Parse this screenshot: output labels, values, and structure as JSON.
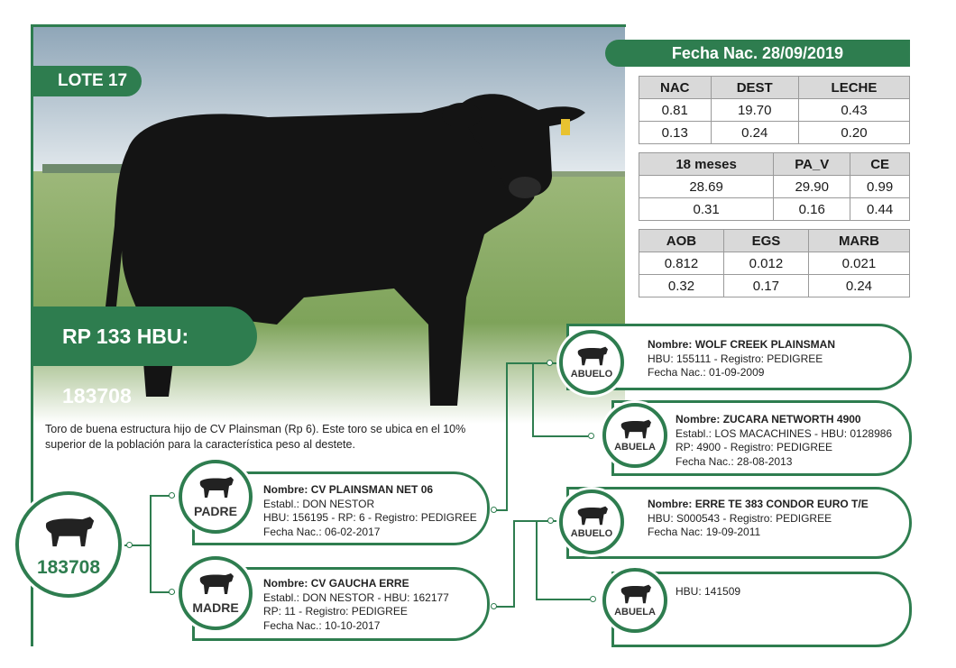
{
  "lote": "LOTE 17",
  "rp_hbu": "RP 133 HBU: 183708",
  "fecha_nac": "Fecha Nac. 28/09/2019",
  "tables": [
    {
      "headers": [
        "NAC",
        "DEST",
        "LECHE"
      ],
      "rows": [
        [
          "0.81",
          "19.70",
          "0.43"
        ],
        [
          "0.13",
          "0.24",
          "0.20"
        ]
      ]
    },
    {
      "headers": [
        "18 meses",
        "PA_V",
        "CE"
      ],
      "rows": [
        [
          "28.69",
          "29.90",
          "0.99"
        ],
        [
          "0.31",
          "0.16",
          "0.44"
        ]
      ]
    },
    {
      "headers": [
        "AOB",
        "EGS",
        "MARB"
      ],
      "rows": [
        [
          "0.812",
          "0.012",
          "0.021"
        ],
        [
          "0.32",
          "0.17",
          "0.24"
        ]
      ]
    }
  ],
  "description": "Toro de buena estructura hijo de CV Plainsman (Rp 6). Este toro se ubica en el 10% superior de la población para la característica peso al destete.",
  "main_id": "183708",
  "padre": {
    "role": "PADRE",
    "nombre_label": "Nombre:",
    "nombre": "CV PLAINSMAN NET 06",
    "line1": "Establ.: DON NESTOR",
    "line2": "HBU: 156195 - RP: 6 - Registro: PEDIGREE",
    "line3": "Fecha Nac.: 06-02-2017"
  },
  "madre": {
    "role": "MADRE",
    "nombre_label": "Nombre:",
    "nombre": "CV GAUCHA ERRE",
    "line1": "Establ.: DON NESTOR - HBU: 162177",
    "line2": "RP: 11 - Registro: PEDIGREE",
    "line3": "Fecha Nac.: 10-10-2017"
  },
  "abuelo_p": {
    "role": "ABUELO",
    "nombre_label": "Nombre:",
    "nombre": "WOLF CREEK PLAINSMAN",
    "line1": "HBU: 155111 - Registro: PEDIGREE",
    "line2": "Fecha Nac.: 01-09-2009"
  },
  "abuela_p": {
    "role": "ABUELA",
    "nombre_label": "Nombre:",
    "nombre": "ZUCARA NETWORTH 4900",
    "line1": "Establ.: LOS MACACHINES - HBU: 0128986",
    "line2": "RP: 4900 - Registro: PEDIGREE",
    "line3": "Fecha Nac.: 28-08-2013"
  },
  "abuelo_m": {
    "role": "ABUELO",
    "nombre_label": "Nombre:",
    "nombre": "ERRE TE 383 CONDOR EURO T/E",
    "line1": "HBU: S000543 - Registro: PEDIGREE",
    "line2": "Fecha Nac: 19-09-2011"
  },
  "abuela_m": {
    "role": "ABUELA",
    "line1": "HBU: 141509"
  },
  "colors": {
    "brand_green": "#2e7d4f",
    "table_header": "#d9d9d9"
  },
  "icons": [
    "bull-icon"
  ]
}
